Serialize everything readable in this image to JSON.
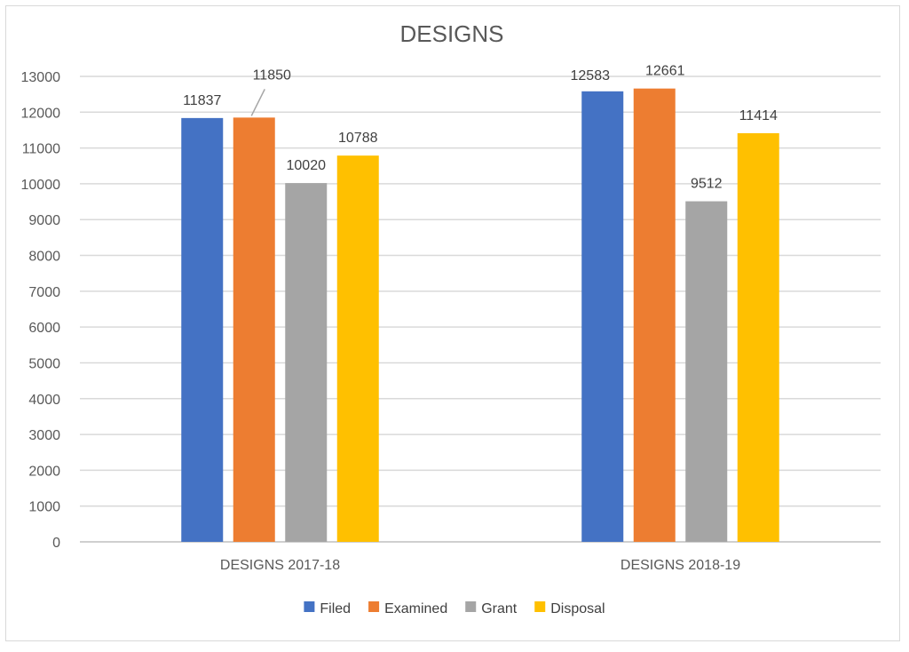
{
  "chart_data": {
    "type": "bar",
    "title": "DESIGNS",
    "xlabel": "",
    "ylabel": "",
    "categories": [
      "DESIGNS 2017-18",
      "DESIGNS 2018-19"
    ],
    "series": [
      {
        "name": "Filed",
        "color": "#4472c4",
        "values": [
          11837,
          12583
        ]
      },
      {
        "name": "Examined",
        "color": "#ed7d31",
        "values": [
          11850,
          12661
        ]
      },
      {
        "name": "Grant",
        "color": "#a5a5a5",
        "values": [
          10020,
          9512
        ]
      },
      {
        "name": "Disposal",
        "color": "#ffc000",
        "values": [
          10788,
          11414
        ]
      }
    ],
    "ylim": [
      0,
      13000
    ],
    "yticks": [
      0,
      1000,
      2000,
      3000,
      4000,
      5000,
      6000,
      7000,
      8000,
      9000,
      10000,
      11000,
      12000,
      13000
    ],
    "grid": true,
    "legend": "bottom"
  }
}
